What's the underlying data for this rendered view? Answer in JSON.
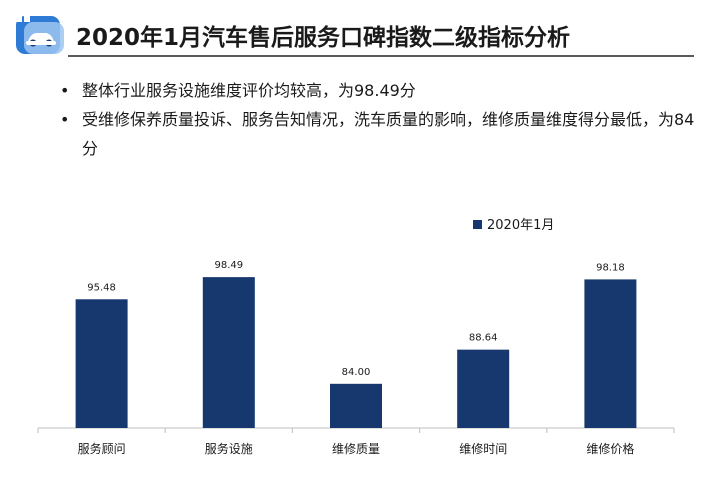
{
  "header": {
    "title": "2020年1月汽车售后服务口碑指数二级指标分析",
    "logo_icon": "car-logo-icon"
  },
  "bullets": [
    "整体行业服务设施维度评价均较高，为98.49分",
    "受维修保养质量投诉、服务告知情况，洗车质量的影响，维修质量维度得分最低，为84分"
  ],
  "bullet_marker": "•",
  "colors": {
    "bar": "#17386E",
    "axis": "#BFBFBF",
    "logo_blue": "#2E7BD6",
    "logo_light": "#9CC6F0"
  },
  "chart_data": {
    "type": "bar",
    "categories": [
      "服务顾问",
      "服务设施",
      "维修质量",
      "维修时间",
      "维修价格"
    ],
    "series": [
      {
        "name": "2020年1月",
        "values": [
          95.48,
          98.49,
          84.0,
          88.64,
          98.18
        ],
        "labels": [
          "95.48",
          "98.49",
          "84.00",
          "88.64",
          "98.18"
        ]
      }
    ],
    "ylim": [
      78,
      100
    ],
    "grid": false,
    "legend": "top-right"
  }
}
